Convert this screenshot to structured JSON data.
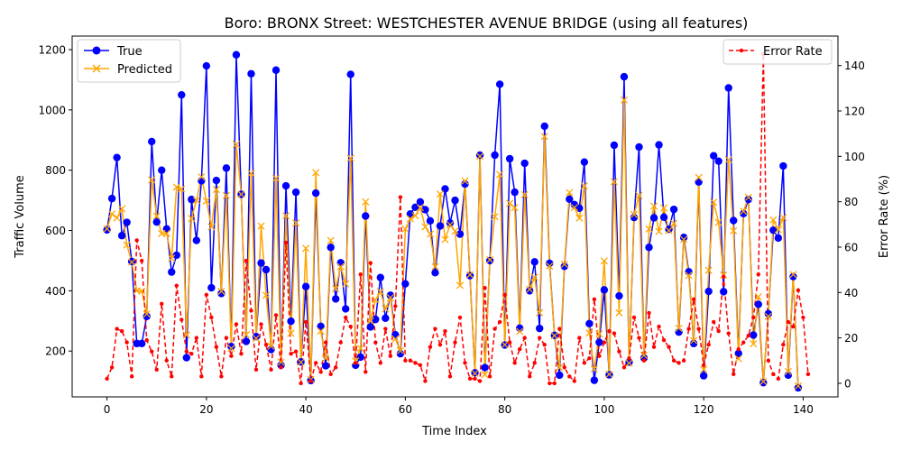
{
  "chart_data": {
    "type": "line",
    "title": "Boro: BRONX Street: WESTCHESTER AVENUE BRIDGE (using all features)",
    "xlabel": "Time Index",
    "ylabel": "Traffic Volume",
    "y2label": "Error Rate (%)",
    "xlim": [
      -7,
      147
    ],
    "ylim": [
      48,
      1245
    ],
    "y2lim": [
      -6,
      153
    ],
    "xticks": [
      0,
      20,
      40,
      60,
      80,
      100,
      120,
      140
    ],
    "yticks": [
      200,
      400,
      600,
      800,
      1000,
      1200
    ],
    "y2ticks": [
      0,
      20,
      40,
      60,
      80,
      100,
      120,
      140
    ],
    "grid": false,
    "legend_left_position": "upper-left",
    "legend_right_position": "upper-right",
    "series": [
      {
        "name": "True",
        "axis": "left",
        "color": "#0000ff",
        "marker": "circle",
        "dashed": false,
        "values": [
          602,
          706,
          842,
          583,
          627,
          497,
          225,
          225,
          315,
          895,
          628,
          800,
          605,
          462,
          518,
          1050,
          178,
          703,
          567,
          765,
          1146,
          410,
          766,
          391,
          807,
          215,
          1183,
          720,
          232,
          1120,
          248,
          492,
          470,
          205,
          1132,
          153,
          748,
          299,
          727,
          164,
          414,
          102,
          724,
          282,
          151,
          544,
          373,
          493,
          340,
          1118,
          153,
          180,
          648,
          280,
          305,
          444,
          309,
          385,
          254,
          191,
          423,
          655,
          677,
          695,
          669,
          632,
          460,
          615,
          738,
          625,
          700,
          588,
          754,
          450,
          128,
          850,
          145,
          500,
          850,
          1085,
          220,
          838,
          727,
          276,
          823,
          400,
          496,
          275,
          946,
          491,
          252,
          120,
          481,
          704,
          686,
          674,
          827,
          291,
          103,
          229,
          403,
          121,
          883,
          383,
          1110,
          163,
          643,
          877,
          177,
          544,
          642,
          884,
          644,
          604,
          670,
          263,
          577,
          463,
          225,
          761,
          118,
          398,
          848,
          830,
          397,
          1073,
          633,
          192,
          656,
          703,
          253,
          355,
          95,
          324,
          601,
          575,
          814,
          120,
          447,
          78
        ]
      },
      {
        "name": "Predicted",
        "axis": "left",
        "color": "#ffa500",
        "marker": "x",
        "dashed": false,
        "values": [
          606,
          655,
          642,
          672,
          552,
          495,
          400,
          399,
          323,
          768,
          648,
          590,
          590,
          508,
          744,
          738,
          253,
          640,
          700,
          778,
          698,
          612,
          736,
          398,
          716,
          209,
          886,
          720,
          254,
          790,
          242,
          615,
          385,
          216,
          773,
          163,
          649,
          259,
          625,
          163,
          541,
          106,
          792,
          266,
          176,
          567,
          407,
          480,
          423,
          840,
          167,
          209,
          695,
          300,
          370,
          397,
          340,
          377,
          240,
          201,
          605,
          639,
          649,
          676,
          612,
          588,
          480,
          721,
          570,
          619,
          598,
          418,
          764,
          453,
          126,
          846,
          122,
          503,
          646,
          786,
          221,
          690,
          676,
          265,
          719,
          405,
          445,
          327,
          912,
          482,
          251,
          145,
          488,
          726,
          676,
          641,
          748,
          260,
          141,
          257,
          499,
          123,
          762,
          327,
          1033,
          160,
          653,
          716,
          186,
          605,
          681,
          597,
          675,
          600,
          624,
          276,
          570,
          451,
          235,
          776,
          139,
          468,
          694,
          627,
          452,
          835,
          599,
          175,
          664,
          710,
          224,
          380,
          99,
          315,
          635,
          603,
          643,
          132,
          454,
          84
        ]
      },
      {
        "name": "Error Rate",
        "axis": "right",
        "color": "#ff0000",
        "marker": "dot",
        "dashed": true,
        "values": [
          2,
          7,
          24,
          23,
          18,
          3,
          63,
          54,
          19,
          14,
          6,
          35,
          10,
          3,
          43,
          28,
          14,
          13,
          20,
          3,
          39,
          29,
          16,
          3,
          20,
          12,
          26,
          13,
          54,
          32,
          6,
          26,
          17,
          6,
          30,
          7,
          62,
          13,
          14,
          0,
          27,
          1,
          9,
          5,
          18,
          4,
          7,
          18,
          29,
          25,
          9,
          48,
          5,
          53,
          18,
          9,
          24,
          12,
          34,
          82,
          10,
          10,
          9,
          8,
          1,
          16,
          24,
          17,
          23,
          3,
          18,
          29,
          9,
          2,
          2,
          1,
          42,
          3,
          24,
          27,
          39,
          18,
          9,
          15,
          20,
          3,
          9,
          20,
          17,
          0,
          0,
          24,
          7,
          3,
          1,
          20,
          9,
          11,
          37,
          12,
          18,
          23,
          22,
          14,
          7,
          11,
          29,
          20,
          10,
          31,
          16,
          25,
          19,
          16,
          10,
          9,
          10,
          24,
          37,
          24,
          8,
          17,
          27,
          23,
          47,
          22,
          4,
          15,
          18,
          21,
          29,
          48,
          145,
          10,
          4,
          2,
          17,
          27,
          25,
          41,
          29,
          4
        ]
      }
    ]
  }
}
